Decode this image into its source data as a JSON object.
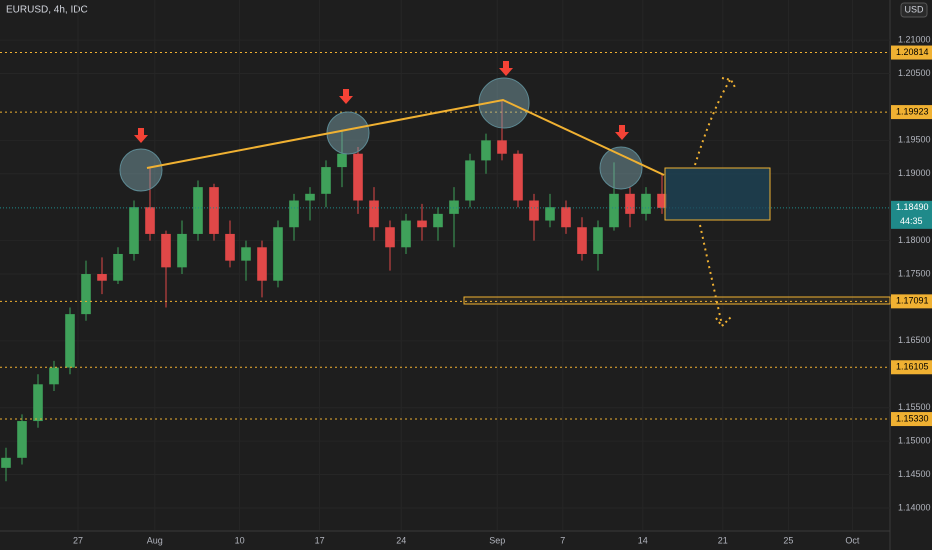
{
  "chart_data": {
    "type": "candlestick",
    "title": "EURUSD, 4h, IDC",
    "currency": "USD",
    "up_color": "#3fa15a",
    "down_color": "#e04848",
    "x": [
      -4.5,
      -3.5,
      -2.5,
      -1.5,
      -0.5,
      0.5,
      1.5,
      2.5,
      3.5,
      4.5,
      5.5,
      6.5,
      7.5,
      8.5,
      9.5,
      10.5,
      11.5,
      12.5,
      13.5,
      14.5,
      15.5,
      16.5,
      17.5,
      18.5,
      19.5,
      20.5,
      21.5,
      22.5,
      23.5,
      24.5,
      25.5,
      26.5,
      27.5,
      28.5,
      29.5,
      30.5,
      31.5,
      32.5,
      33.5,
      34.5,
      35.5,
      36.5
    ],
    "open": [
      1.146,
      1.1475,
      1.153,
      1.1585,
      1.161,
      1.169,
      1.175,
      1.174,
      1.178,
      1.185,
      1.181,
      1.176,
      1.181,
      1.188,
      1.181,
      1.177,
      1.179,
      1.174,
      1.182,
      1.186,
      1.187,
      1.191,
      1.193,
      1.186,
      1.182,
      1.179,
      1.183,
      1.182,
      1.184,
      1.186,
      1.192,
      1.195,
      1.193,
      1.186,
      1.183,
      1.185,
      1.182,
      1.178,
      1.182,
      1.187,
      1.184,
      1.187
    ],
    "high": [
      1.149,
      1.154,
      1.16,
      1.162,
      1.17,
      1.177,
      1.1775,
      1.179,
      1.186,
      1.1908,
      1.1815,
      1.183,
      1.189,
      1.1885,
      1.183,
      1.18,
      1.18,
      1.183,
      1.187,
      1.188,
      1.192,
      1.1966,
      1.194,
      1.188,
      1.183,
      1.184,
      1.1855,
      1.185,
      1.188,
      1.193,
      1.196,
      1.2011,
      1.1935,
      1.187,
      1.187,
      1.186,
      1.1835,
      1.183,
      1.1917,
      1.188,
      1.188,
      1.19
    ],
    "low": [
      1.144,
      1.1465,
      1.152,
      1.1575,
      1.16,
      1.168,
      1.172,
      1.1735,
      1.177,
      1.18,
      1.17,
      1.175,
      1.18,
      1.18,
      1.176,
      1.174,
      1.1715,
      1.173,
      1.18,
      1.183,
      1.185,
      1.188,
      1.184,
      1.18,
      1.1755,
      1.178,
      1.18,
      1.18,
      1.179,
      1.185,
      1.19,
      1.192,
      1.185,
      1.18,
      1.182,
      1.181,
      1.177,
      1.1755,
      1.1815,
      1.182,
      1.183,
      1.184
    ],
    "close": [
      1.1475,
      1.153,
      1.1585,
      1.161,
      1.169,
      1.175,
      1.174,
      1.178,
      1.185,
      1.181,
      1.176,
      1.181,
      1.188,
      1.181,
      1.177,
      1.179,
      1.174,
      1.182,
      1.186,
      1.187,
      1.191,
      1.193,
      1.186,
      1.182,
      1.179,
      1.183,
      1.182,
      1.184,
      1.186,
      1.192,
      1.195,
      1.193,
      1.186,
      1.183,
      1.185,
      1.182,
      1.178,
      1.182,
      1.187,
      1.184,
      1.187,
      1.1849
    ],
    "xlim": [
      -4.875,
      50.75
    ],
    "xticks": [
      {
        "value": 0,
        "label": "27"
      },
      {
        "value": 4.8,
        "label": "Aug"
      },
      {
        "value": 10.1,
        "label": "10"
      },
      {
        "value": 15.1,
        "label": "17"
      },
      {
        "value": 20.2,
        "label": "24"
      },
      {
        "value": 26.2,
        "label": "Sep"
      },
      {
        "value": 30.3,
        "label": "7"
      },
      {
        "value": 35.3,
        "label": "14"
      },
      {
        "value": 40.3,
        "label": "21"
      },
      {
        "value": 44.4,
        "label": "25"
      },
      {
        "value": 48.4,
        "label": "Oct"
      }
    ],
    "ylim": [
      1.1367,
      1.216
    ],
    "yticks": [
      {
        "value": 1.21,
        "label": "1.21000"
      },
      {
        "value": 1.205,
        "label": "1.20500"
      },
      {
        "value": 1.195,
        "label": "1.19500"
      },
      {
        "value": 1.19,
        "label": "1.19000"
      },
      {
        "value": 1.18,
        "label": "1.18000"
      },
      {
        "value": 1.175,
        "label": "1.17500"
      },
      {
        "value": 1.165,
        "label": "1.16500"
      },
      {
        "value": 1.155,
        "label": "1.15500"
      },
      {
        "value": 1.15,
        "label": "1.15000"
      },
      {
        "value": 1.145,
        "label": "1.14500"
      },
      {
        "value": 1.14,
        "label": "1.14000"
      }
    ],
    "levels": [
      {
        "value": 1.20814,
        "label": "1.20814"
      },
      {
        "value": 1.19923,
        "label": "1.19923"
      },
      {
        "value": 1.17091,
        "label": "1.17091"
      },
      {
        "value": 1.16105,
        "label": "1.16105"
      },
      {
        "value": 1.1533,
        "label": "1.15330"
      }
    ],
    "last_price": {
      "value": 1.1849,
      "label": "1.18490"
    },
    "countdown": "44:35"
  }
}
